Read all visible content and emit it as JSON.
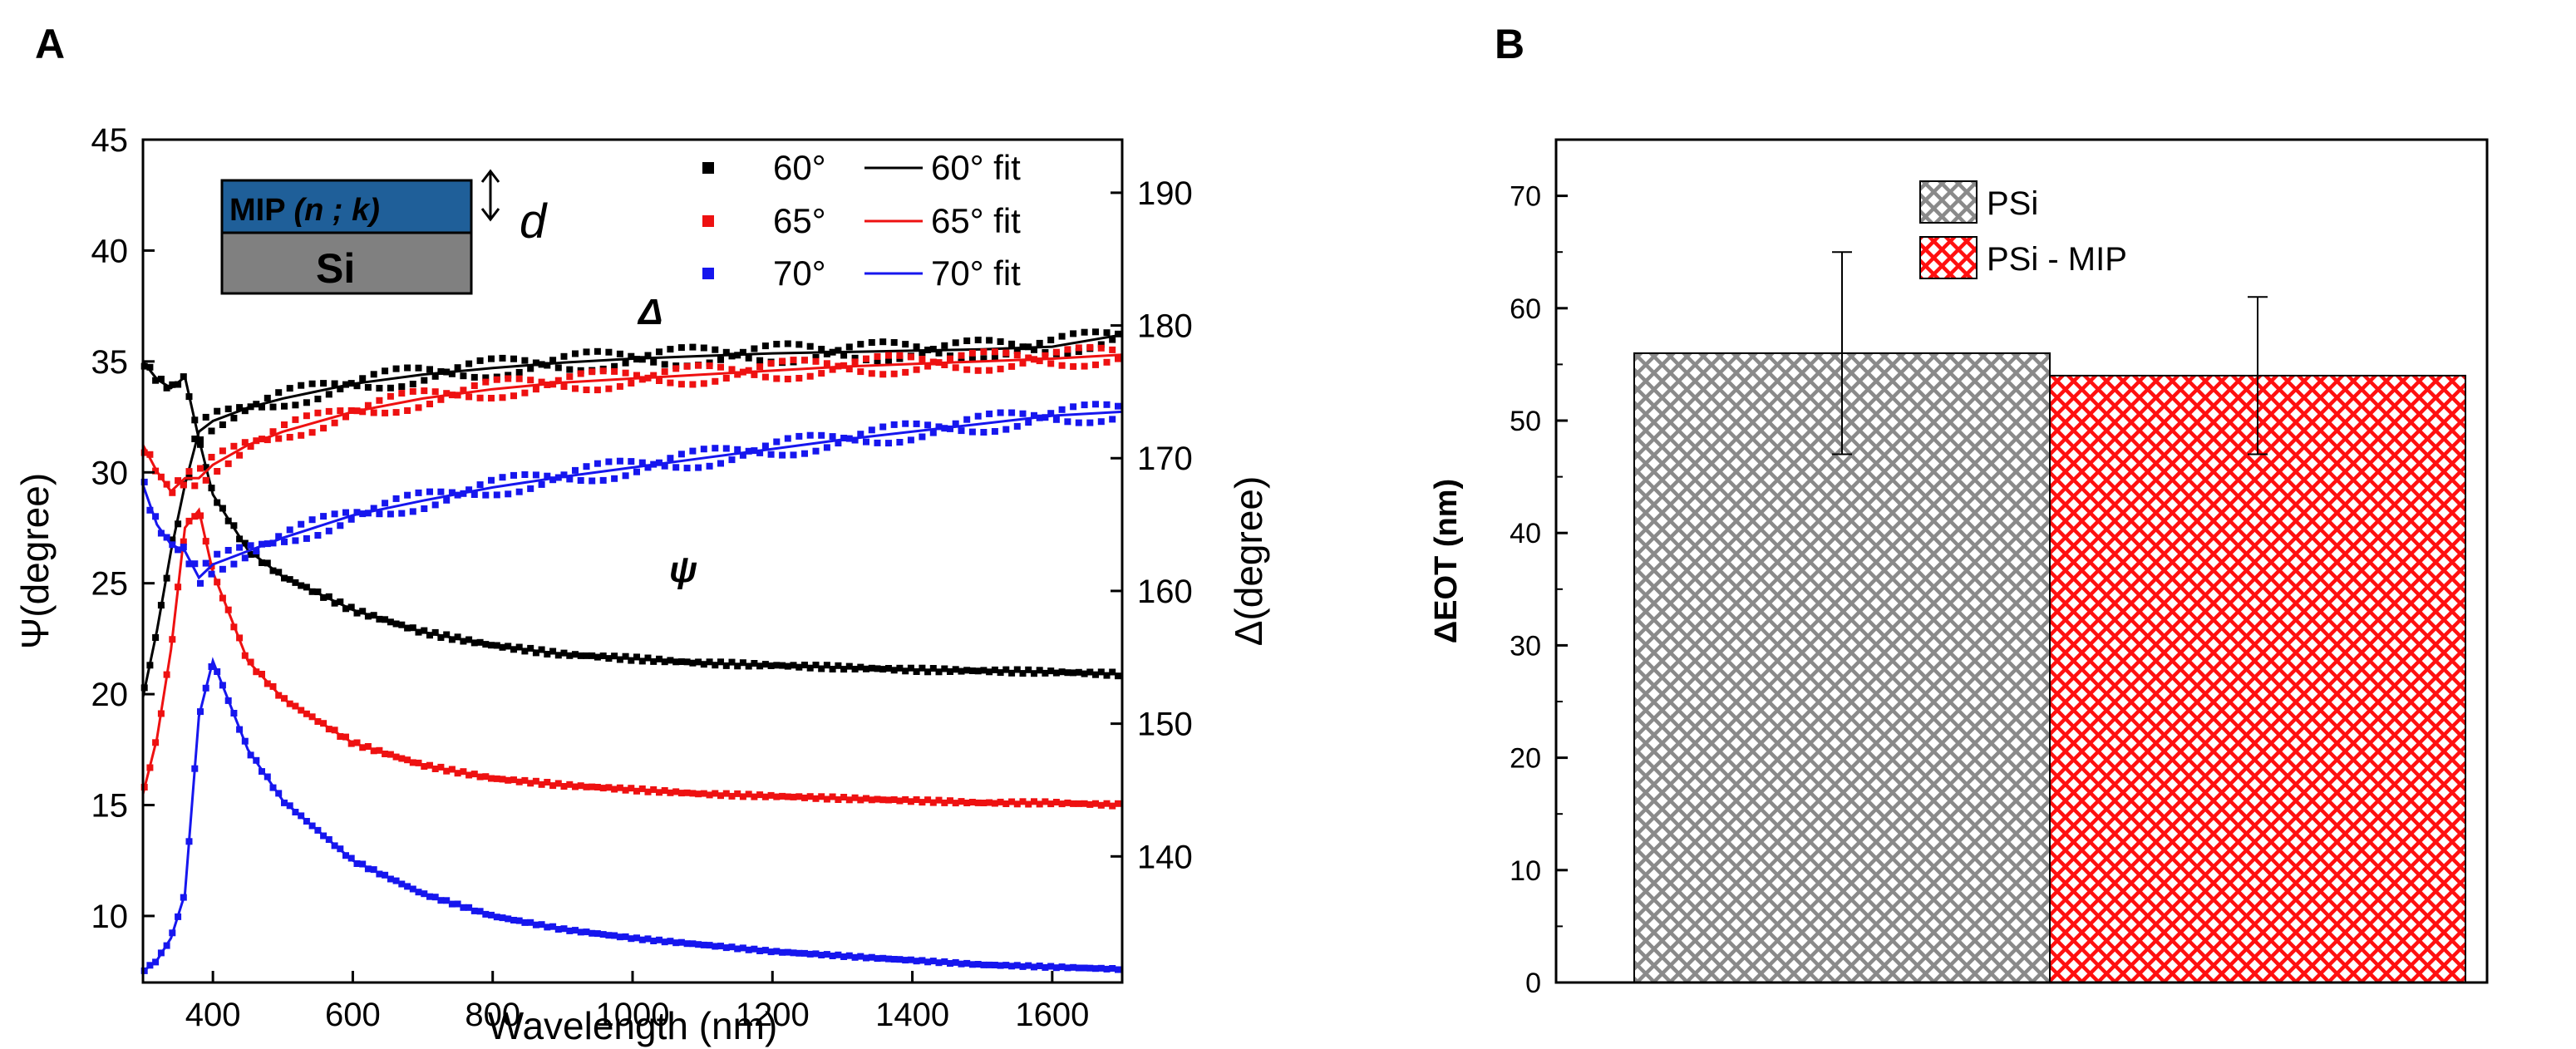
{
  "panels": {
    "a_label": "A",
    "b_label": "B"
  },
  "inset": {
    "mip_label": "MIP",
    "nk_label": "(n ; k)",
    "si_label": "Si",
    "thickness_label": "d"
  },
  "annotations": {
    "delta_symbol": "Δ",
    "psi_symbol": "ψ"
  },
  "colors": {
    "black": "#000000",
    "red": "#ee1111",
    "blue": "#1616ee",
    "mip_fill": "#1f5f99",
    "si_fill": "#808080",
    "psi_bar": "#888888",
    "mip_bar": "#ff1010"
  },
  "chart_data": [
    {
      "type": "line",
      "title": "",
      "xlabel": "Wavelength (nm)",
      "ylabel": "Ψ(degree)",
      "y2label": "Δ(degree)",
      "xlim": [
        300,
        1700
      ],
      "ylim": [
        7,
        45
      ],
      "y2lim": [
        130.5,
        194
      ],
      "xticks": [
        400,
        600,
        800,
        1000,
        1200,
        1400,
        1600
      ],
      "yticks": [
        10,
        15,
        20,
        25,
        30,
        35,
        40,
        45
      ],
      "y2ticks": [
        140,
        150,
        160,
        170,
        180,
        190
      ],
      "legend": [
        {
          "label": "60°",
          "fit_label": "60° fit",
          "color": "#000000"
        },
        {
          "label": "65°",
          "fit_label": "65° fit",
          "color": "#ee1111"
        },
        {
          "label": "70°",
          "fit_label": "70° fit",
          "color": "#1616ee"
        }
      ],
      "x": [
        300,
        320,
        340,
        360,
        380,
        400,
        450,
        500,
        600,
        700,
        800,
        900,
        1000,
        1100,
        1200,
        1300,
        1400,
        1500,
        1600,
        1700
      ],
      "series": [
        {
          "name": "60°",
          "quantity": "Psi",
          "axis": "left",
          "color": "#000000",
          "values": [
            35.0,
            34.2,
            33.8,
            34.3,
            31.5,
            29.0,
            26.5,
            25.3,
            23.8,
            22.8,
            22.2,
            21.8,
            21.6,
            21.4,
            21.3,
            21.2,
            21.1,
            21.05,
            21.0,
            20.9
          ]
        },
        {
          "name": "60°",
          "quantity": "Delta",
          "axis": "right",
          "color": "#000000",
          "values": [
            152.0,
            157.0,
            163.0,
            168.0,
            172.0,
            172.8,
            173.8,
            174.5,
            175.6,
            176.3,
            176.8,
            177.2,
            177.5,
            177.7,
            177.9,
            178.0,
            178.1,
            178.2,
            178.4,
            179.3
          ]
        },
        {
          "name": "65°",
          "quantity": "Psi",
          "axis": "left",
          "color": "#ee1111",
          "values": [
            15.5,
            18.0,
            22.0,
            27.5,
            28.3,
            25.5,
            21.5,
            19.8,
            17.8,
            16.8,
            16.2,
            15.9,
            15.7,
            15.5,
            15.4,
            15.3,
            15.2,
            15.1,
            15.1,
            15.0
          ]
        },
        {
          "name": "65°",
          "quantity": "Delta",
          "axis": "right",
          "color": "#ee1111",
          "values": [
            171.0,
            169.0,
            167.5,
            168.5,
            168.5,
            169.5,
            171.0,
            172.0,
            173.5,
            174.5,
            175.2,
            175.7,
            176.0,
            176.3,
            176.6,
            176.9,
            177.1,
            177.3,
            177.5,
            177.8
          ]
        },
        {
          "name": "70°",
          "quantity": "Psi",
          "axis": "left",
          "color": "#1616ee",
          "values": [
            7.5,
            8.0,
            9.0,
            11.0,
            19.0,
            21.5,
            17.5,
            15.2,
            12.5,
            11.0,
            10.0,
            9.4,
            9.0,
            8.7,
            8.4,
            8.2,
            8.0,
            7.8,
            7.7,
            7.6
          ]
        },
        {
          "name": "70°",
          "quantity": "Delta",
          "axis": "right",
          "color": "#1616ee",
          "values": [
            168.0,
            165.0,
            163.5,
            163.0,
            161.0,
            162.0,
            163.0,
            164.0,
            165.7,
            166.8,
            167.8,
            168.6,
            169.3,
            170.0,
            170.7,
            171.4,
            172.0,
            172.6,
            173.2,
            173.5
          ]
        }
      ],
      "annotations": [
        {
          "text": "Δ",
          "x": 975,
          "y": 36.5
        },
        {
          "text": "ψ",
          "x": 1000,
          "y": 24.0
        }
      ]
    },
    {
      "type": "bar",
      "title": "",
      "xlabel": "",
      "ylabel": "ΔEOT (nm)",
      "ylim": [
        0,
        75
      ],
      "yticks": [
        0,
        10,
        20,
        30,
        40,
        50,
        60,
        70
      ],
      "categories": [
        "PSi",
        "PSi - MIP"
      ],
      "values": [
        56,
        54
      ],
      "errors": [
        {
          "lower": 47,
          "upper": 65
        },
        {
          "lower": 47,
          "upper": 61
        }
      ],
      "legend": [
        {
          "label": "PSi",
          "pattern": "crosshatch-gray"
        },
        {
          "label": "PSi - MIP",
          "pattern": "crosshatch-red"
        }
      ]
    }
  ]
}
